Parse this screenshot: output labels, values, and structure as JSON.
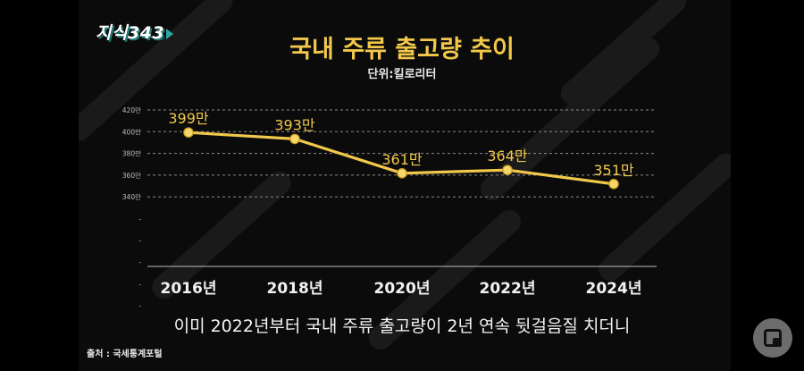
{
  "logo": {
    "text": "지식343"
  },
  "chart_data": {
    "type": "line",
    "title": "국내 주류 출고량 추이",
    "subtitle": "단위:킬로리터",
    "categories": [
      "2016년",
      "2018년",
      "2020년",
      "2022년",
      "2024년"
    ],
    "series": [
      {
        "values": [
          399,
          393,
          361,
          364,
          351
        ]
      }
    ],
    "data_labels": [
      "399만",
      "393만",
      "361만",
      "364만",
      "351만"
    ],
    "y_ticks": [
      "420만",
      "400만",
      "380만",
      "360만",
      "340만",
      "-",
      "-",
      "-",
      "-",
      "-"
    ],
    "ylim": [
      340,
      420
    ],
    "grid": true,
    "line_color": "#f2c84b",
    "label_color": "#f2c84b",
    "grid_color": "#8a8a8a"
  },
  "caption": "이미 2022년부터 국내 주류 출고량이 2년 연속 뒷걸음질 치더니",
  "source": "출처 : 국세통계포털"
}
